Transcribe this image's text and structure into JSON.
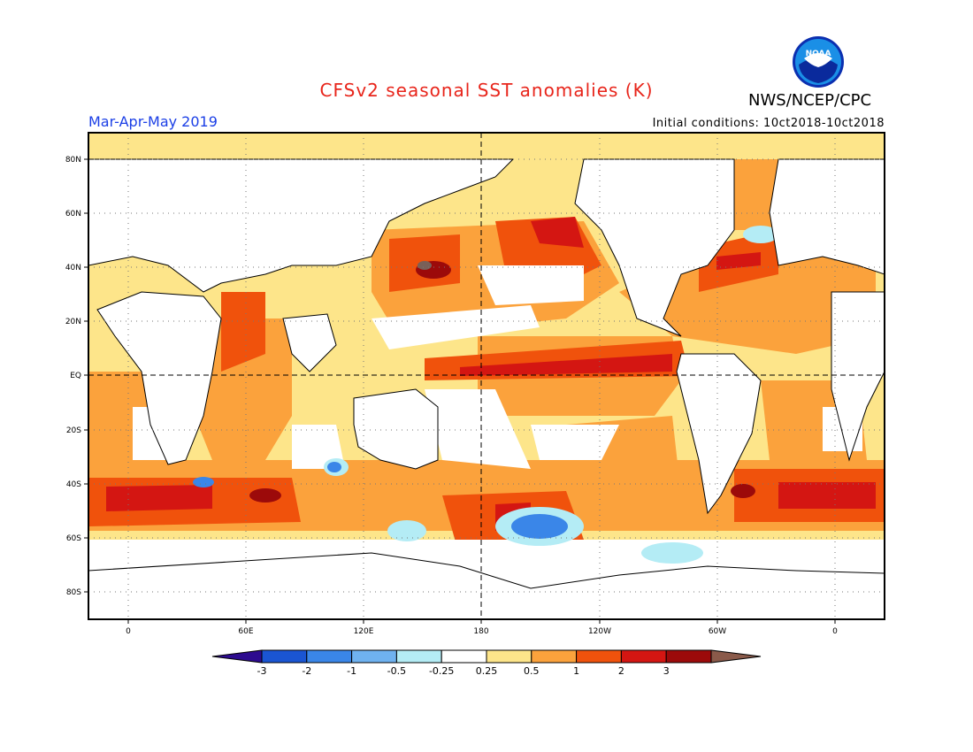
{
  "title": "CFSv2 seasonal SST anomalies (K)",
  "organization": "NWS/NCEP/CPC",
  "logo_text": "NOAA",
  "season_label": "Mar-Apr-May 2019",
  "initial_conditions": "Initial conditions: 10ct2018-10ct2018",
  "map": {
    "lat_ticks": [
      "80N",
      "60N",
      "40N",
      "20N",
      "EQ",
      "20S",
      "40S",
      "60S",
      "80S"
    ],
    "lon_ticks": [
      "0",
      "60E",
      "120E",
      "180",
      "120W",
      "60W",
      "0"
    ],
    "grid": "dotted",
    "reference_lines": [
      "EQ",
      "180"
    ]
  },
  "colorbar": {
    "colors": [
      "#2d0b8f",
      "#1a55d2",
      "#3a86e8",
      "#6fb2f0",
      "#b4ecf5",
      "#ffffff",
      "#fde58a",
      "#fba23c",
      "#f0520c",
      "#d41612",
      "#9c0a0a",
      "#8a5a4a"
    ],
    "tick_labels": [
      "-3",
      "-2",
      "-1",
      "-0.5",
      "-0.25",
      "0.25",
      "0.5",
      "1",
      "2",
      "3"
    ]
  },
  "palette": {
    "light_yellow": "#fde58a",
    "orange": "#fba23c",
    "dark_orange": "#f0520c",
    "red": "#d41612",
    "dark_red": "#9c0a0a",
    "brown": "#7a6058",
    "light_blue": "#b4ecf5",
    "mid_blue": "#3a86e8"
  }
}
